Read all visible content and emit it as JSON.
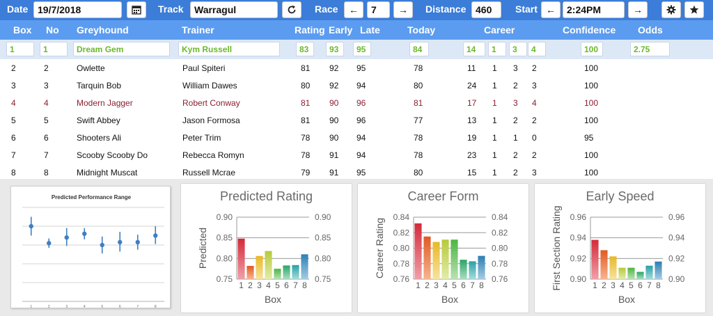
{
  "toolbar": {
    "date_label": "Date",
    "date_value": "19/7/2018",
    "calendar_icon": "calendar-icon",
    "track_label": "Track",
    "track_value": "Warragul",
    "refresh_icon": "refresh-icon",
    "race_label": "Race",
    "race_prev": "←",
    "race_value": "7",
    "race_next": "→",
    "distance_label": "Distance",
    "distance_value": "460",
    "start_label": "Start",
    "start_prev": "←",
    "start_value": "2:24PM",
    "start_next": "→",
    "settings_icon": "gear-icon",
    "favourite_icon": "star-icon"
  },
  "table": {
    "headers": {
      "box": "Box",
      "no": "No",
      "greyhound": "Greyhound",
      "trainer": "Trainer",
      "rating": "Rating",
      "early": "Early",
      "late": "Late",
      "today": "Today",
      "career": "Career",
      "confidence": "Confidence",
      "odds": "Odds"
    },
    "selected": {
      "box": "1",
      "no": "1",
      "greyhound": "Dream Gem",
      "trainer": "Kym Russell",
      "rating": "83",
      "early": "93",
      "late": "95",
      "today": "84",
      "career": [
        "14",
        "1",
        "3",
        "4"
      ],
      "confidence": "100",
      "odds": "2.75"
    },
    "rows": [
      {
        "box": "2",
        "no": "2",
        "greyhound": "Owlette",
        "trainer": "Paul Spiteri",
        "rating": "81",
        "early": "92",
        "late": "95",
        "today": "78",
        "c1": "11",
        "c2": "1",
        "c3": "3",
        "c4": "2",
        "confidence": "100"
      },
      {
        "box": "3",
        "no": "3",
        "greyhound": "Tarquin Bob",
        "trainer": "William Dawes",
        "rating": "80",
        "early": "92",
        "late": "94",
        "today": "80",
        "c1": "24",
        "c2": "1",
        "c3": "2",
        "c4": "3",
        "confidence": "100"
      },
      {
        "box": "4",
        "no": "4",
        "greyhound": "Modern Jagger",
        "trainer": "Robert Conway",
        "rating": "81",
        "early": "90",
        "late": "96",
        "today": "81",
        "c1": "17",
        "c2": "1",
        "c3": "3",
        "c4": "4",
        "confidence": "100"
      },
      {
        "box": "5",
        "no": "5",
        "greyhound": "Swift Abbey",
        "trainer": "Jason Formosa",
        "rating": "81",
        "early": "90",
        "late": "96",
        "today": "77",
        "c1": "13",
        "c2": "1",
        "c3": "2",
        "c4": "2",
        "confidence": "100"
      },
      {
        "box": "6",
        "no": "6",
        "greyhound": "Shooters Ali",
        "trainer": "Peter Trim",
        "rating": "78",
        "early": "90",
        "late": "94",
        "today": "78",
        "c1": "19",
        "c2": "1",
        "c3": "1",
        "c4": "0",
        "confidence": "95"
      },
      {
        "box": "7",
        "no": "7",
        "greyhound": "Scooby Scooby Do",
        "trainer": "Rebecca Romyn",
        "rating": "78",
        "early": "91",
        "late": "94",
        "today": "78",
        "c1": "23",
        "c2": "1",
        "c3": "2",
        "c4": "2",
        "confidence": "100"
      },
      {
        "box": "8",
        "no": "8",
        "greyhound": "Midnight Muscat",
        "trainer": "Russell Mcrae",
        "rating": "79",
        "early": "91",
        "late": "95",
        "today": "80",
        "c1": "15",
        "c2": "1",
        "c3": "2",
        "c4": "3",
        "confidence": "100"
      }
    ]
  },
  "colors": {
    "toolbar_bg": "#3b7dd8",
    "header_bg": "#5b9cf0",
    "selected_bg": "#dde8f7",
    "selected_text": "#6ab82c",
    "alert_row_text": "#8b1e2f"
  },
  "chart_data": [
    {
      "type": "scatter",
      "title": "Predicted Performance Range",
      "x": [
        "1",
        "2",
        "3",
        "4",
        "5",
        "6",
        "7",
        "8"
      ],
      "mid": [
        0.8,
        0.62,
        0.68,
        0.72,
        0.6,
        0.63,
        0.63,
        0.7
      ],
      "low": [
        0.7,
        0.57,
        0.59,
        0.66,
        0.51,
        0.53,
        0.55,
        0.61
      ],
      "high": [
        0.9,
        0.67,
        0.78,
        0.78,
        0.69,
        0.74,
        0.71,
        0.8
      ],
      "ylim": [
        0,
        1
      ],
      "grid": true
    },
    {
      "type": "bar",
      "title": "Predicted Rating",
      "categories": [
        "1",
        "2",
        "3",
        "4",
        "5",
        "6",
        "7",
        "8"
      ],
      "values": [
        0.848,
        0.782,
        0.806,
        0.818,
        0.775,
        0.783,
        0.784,
        0.81
      ],
      "xlabel": "Box",
      "ylabel": "Predicted",
      "ylim": [
        0.75,
        0.9
      ],
      "yticks": [
        "0.75",
        "0.80",
        "0.85",
        "0.90"
      ]
    },
    {
      "type": "bar",
      "title": "Career Form",
      "categories": [
        "1",
        "2",
        "3",
        "4",
        "5",
        "6",
        "7",
        "8"
      ],
      "values": [
        0.832,
        0.815,
        0.808,
        0.811,
        0.811,
        0.785,
        0.783,
        0.79
      ],
      "xlabel": "Box",
      "ylabel": "Career Rating",
      "ylim": [
        0.76,
        0.84
      ],
      "yticks": [
        "0.76",
        "0.78",
        "0.80",
        "0.82",
        "0.84"
      ]
    },
    {
      "type": "bar",
      "title": "Early Speed",
      "categories": [
        "1",
        "2",
        "3",
        "4",
        "5",
        "6",
        "7",
        "8"
      ],
      "values": [
        0.938,
        0.928,
        0.922,
        0.911,
        0.911,
        0.907,
        0.913,
        0.917
      ],
      "xlabel": "Box",
      "ylabel": "First Section Rating",
      "ylim": [
        0.9,
        0.96
      ],
      "yticks": [
        "0.90",
        "0.92",
        "0.94",
        "0.96"
      ]
    }
  ]
}
